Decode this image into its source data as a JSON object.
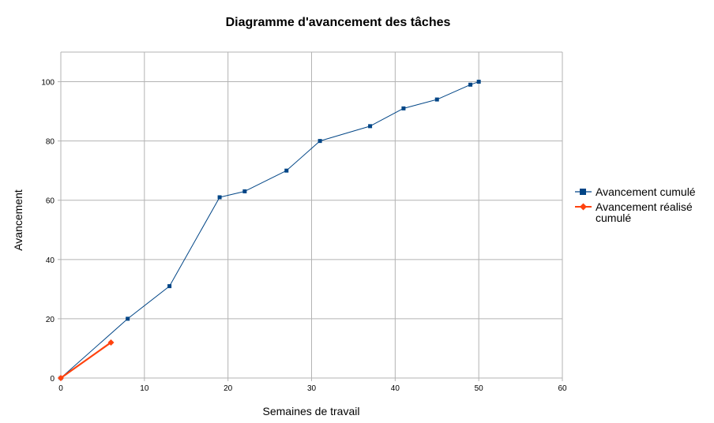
{
  "chart_data": {
    "type": "line",
    "title": "Diagramme d'avancement des tâches",
    "xlabel": "Semaines de travail",
    "ylabel": "Avancement",
    "xlim": [
      0,
      60
    ],
    "ylim": [
      0,
      110
    ],
    "xticks": [
      "0",
      "10",
      "20",
      "30",
      "40",
      "50",
      "60"
    ],
    "yticks": [
      "0",
      "20",
      "40",
      "60",
      "80",
      "100"
    ],
    "grid": true,
    "legend_position": "right",
    "series": [
      {
        "name": "Avancement cumulé",
        "color": "#004586",
        "marker": "square",
        "x": [
          0,
          8,
          13,
          19,
          22,
          27,
          31,
          37,
          41,
          45,
          49,
          50
        ],
        "y": [
          0,
          20,
          31,
          61,
          63,
          70,
          80,
          85,
          91,
          94,
          99,
          100
        ]
      },
      {
        "name": "Avancement réalisé cumulé",
        "legend_lines": [
          "Avancement réalisé",
          "cumulé"
        ],
        "color": "#ff420e",
        "marker": "diamond",
        "x": [
          0,
          6
        ],
        "y": [
          0,
          12
        ]
      }
    ]
  }
}
